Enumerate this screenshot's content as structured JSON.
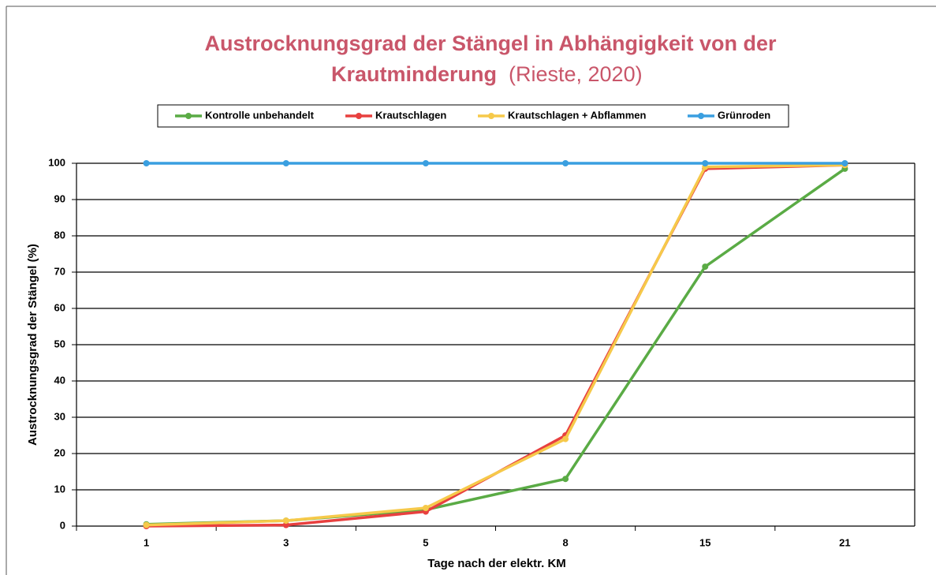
{
  "chart_data": {
    "type": "line",
    "title": "Austrocknungsgrad der Stängel in Abhängigkeit von der Krautminderung",
    "title_note": "(Rieste, 2020)",
    "x_label": "Tage nach der elektr. KM",
    "y_label": "Austrocknungsgrad der Stängel (%)",
    "categories": [
      "1",
      "3",
      "5",
      "8",
      "15",
      "21"
    ],
    "series": [
      {
        "name": "Kontrolle unbehandelt",
        "color": "#5aab45",
        "values": [
          0.5,
          1.5,
          4.5,
          13,
          71.5,
          98.5
        ]
      },
      {
        "name": "Krautschlagen",
        "color": "#e8403f",
        "values": [
          0,
          0.3,
          4,
          25,
          98.5,
          99.5
        ]
      },
      {
        "name": "Krautschlagen + Abflammen",
        "color": "#f6c94a",
        "values": [
          0.3,
          1.5,
          5,
          24,
          99,
          99.5
        ]
      },
      {
        "name": "Grünroden",
        "color": "#3a9fe0",
        "values": [
          100,
          100,
          100,
          100,
          100,
          100
        ]
      }
    ],
    "ylim": [
      0,
      100
    ],
    "yticks": [
      0,
      10,
      20,
      30,
      40,
      50,
      60,
      70,
      80,
      90,
      100
    ],
    "grid": true,
    "legend": "top"
  }
}
